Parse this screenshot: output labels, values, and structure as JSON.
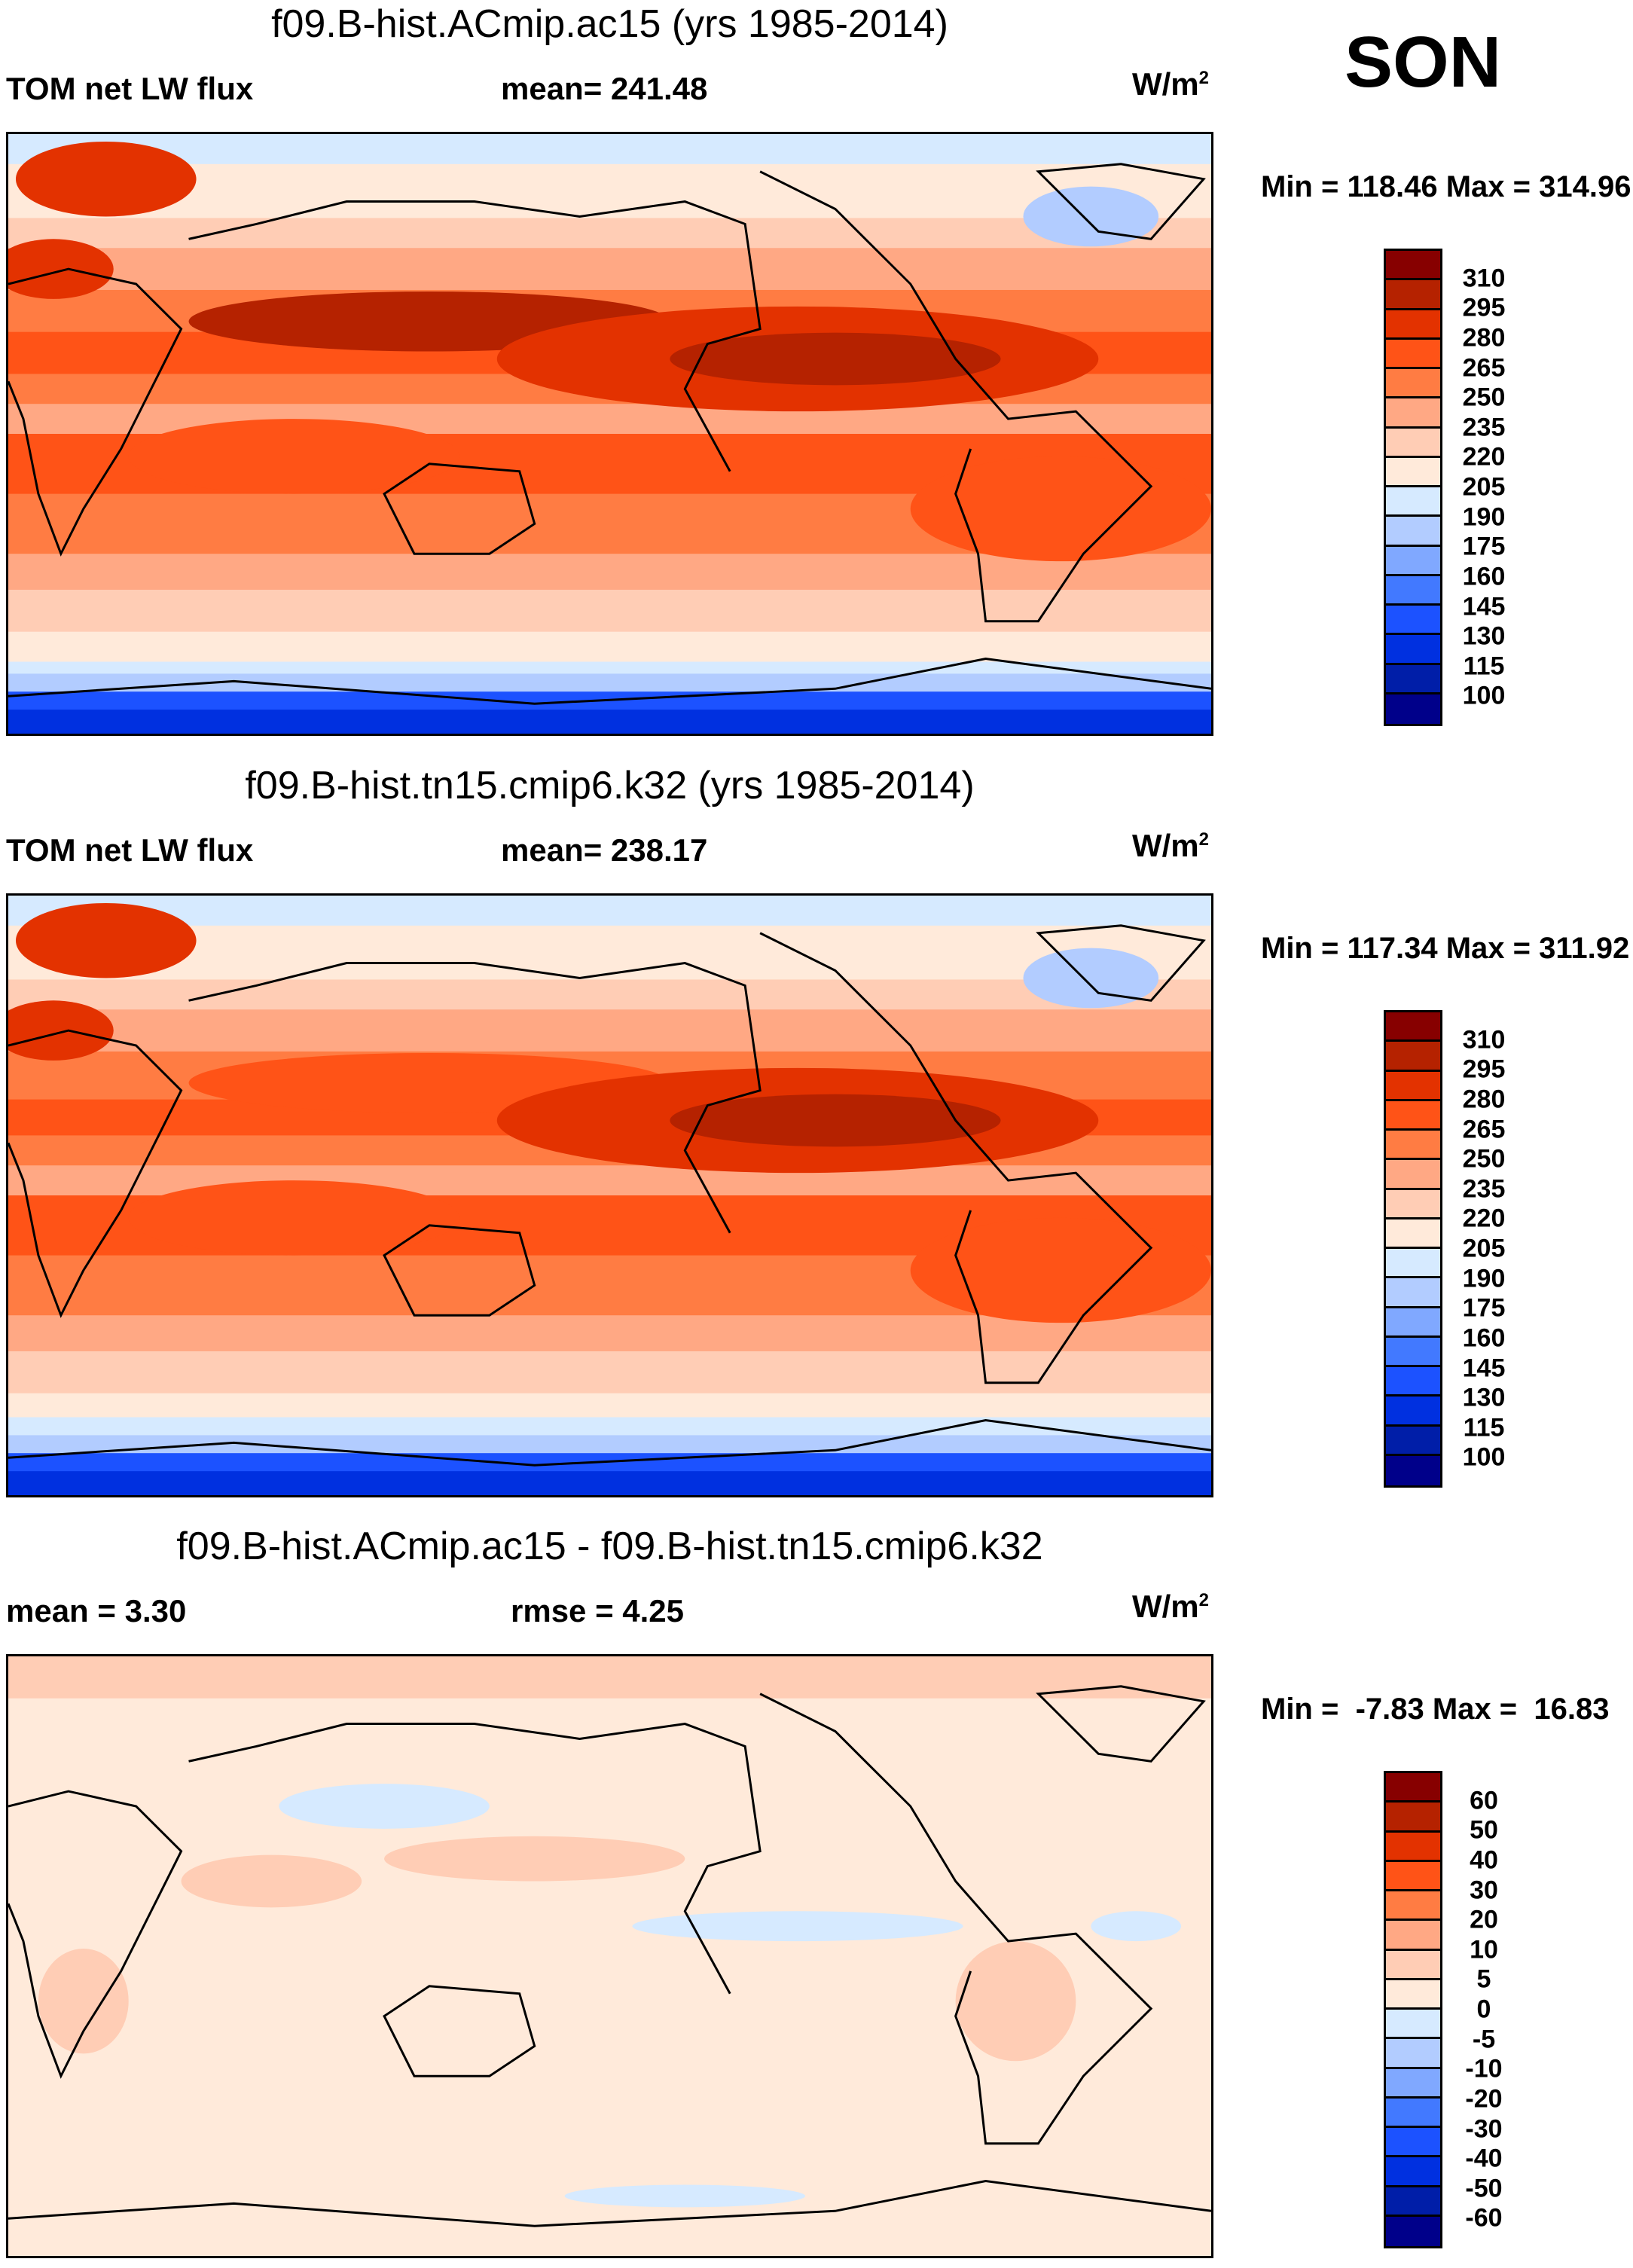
{
  "season": "SON",
  "colors": [
    "#00008a",
    "#001ea8",
    "#0030e0",
    "#1c52ff",
    "#4279ff",
    "#80a8ff",
    "#b2ccff",
    "#d6eaff",
    "#ffeada",
    "#ffcdb5",
    "#ffa884",
    "#ff7c43",
    "#ff5317",
    "#e33200",
    "#b52200",
    "#870000"
  ],
  "chart_data": [
    {
      "type": "heatmap",
      "title": "f09.B-hist.ACmip.ac15 (yrs 1985-2014)",
      "variable": "TOM net LW flux",
      "stat_label": "mean= 241.48",
      "units": "W/m",
      "units_sup": "2",
      "minmax": "Min = 118.46 Max = 314.96",
      "min": 118.46,
      "max": 314.96,
      "mean": 241.48,
      "levels": [
        "310",
        "295",
        "280",
        "265",
        "250",
        "235",
        "220",
        "205",
        "190",
        "175",
        "160",
        "145",
        "130",
        "115",
        "100"
      ]
    },
    {
      "type": "heatmap",
      "title": "f09.B-hist.tn15.cmip6.k32 (yrs 1985-2014)",
      "variable": "TOM net LW flux",
      "stat_label": "mean= 238.17",
      "units": "W/m",
      "units_sup": "2",
      "minmax": "Min = 117.34 Max = 311.92",
      "min": 117.34,
      "max": 311.92,
      "mean": 238.17,
      "levels": [
        "310",
        "295",
        "280",
        "265",
        "250",
        "235",
        "220",
        "205",
        "190",
        "175",
        "160",
        "145",
        "130",
        "115",
        "100"
      ]
    },
    {
      "type": "heatmap",
      "title": "f09.B-hist.ACmip.ac15 - f09.B-hist.tn15.cmip6.k32",
      "variable": "mean =   3.30",
      "stat_label": "rmse =   4.25",
      "units": "W/m",
      "units_sup": "2",
      "minmax": "Min =  -7.83 Max =  16.83",
      "min": -7.83,
      "max": 16.83,
      "mean": 3.3,
      "rmse": 4.25,
      "levels": [
        "60",
        "50",
        "40",
        "30",
        "20",
        "10",
        "5",
        "0",
        "-5",
        "-10",
        "-20",
        "-30",
        "-40",
        "-50",
        "-60"
      ]
    }
  ]
}
